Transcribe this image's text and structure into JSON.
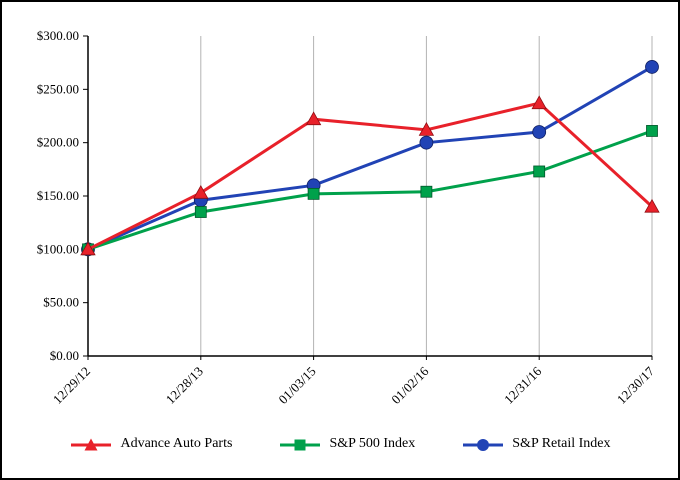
{
  "chart_data": {
    "type": "line",
    "title": "",
    "x": [
      "12/29/12",
      "12/28/13",
      "01/03/15",
      "01/02/16",
      "12/31/16",
      "12/30/17"
    ],
    "series": [
      {
        "name": "Advance Auto Parts",
        "marker": "triangle",
        "color": "#e8212a",
        "marker_edge": "#8f0d12",
        "values": [
          100,
          153,
          222,
          212,
          237,
          140
        ]
      },
      {
        "name": "S&P 500 Index",
        "marker": "square",
        "color": "#00a14b",
        "marker_edge": "#00572a",
        "values": [
          100,
          135,
          152,
          154,
          173,
          211
        ]
      },
      {
        "name": "S&P Retail Index",
        "marker": "circle",
        "color": "#2143b5",
        "marker_edge": "#101f63",
        "values": [
          100,
          146,
          160,
          200,
          210,
          271
        ]
      }
    ],
    "ylim": [
      0,
      300
    ],
    "ytick_step": 50,
    "ytick_labels": [
      "$0.00",
      "$50.00",
      "$100.00",
      "$150.00",
      "$200.00",
      "$250.00",
      "$300.00"
    ],
    "grid": "vertical",
    "legend_position": "bottom",
    "axis_color": "#000000",
    "grid_color": "#b3b3b3"
  }
}
